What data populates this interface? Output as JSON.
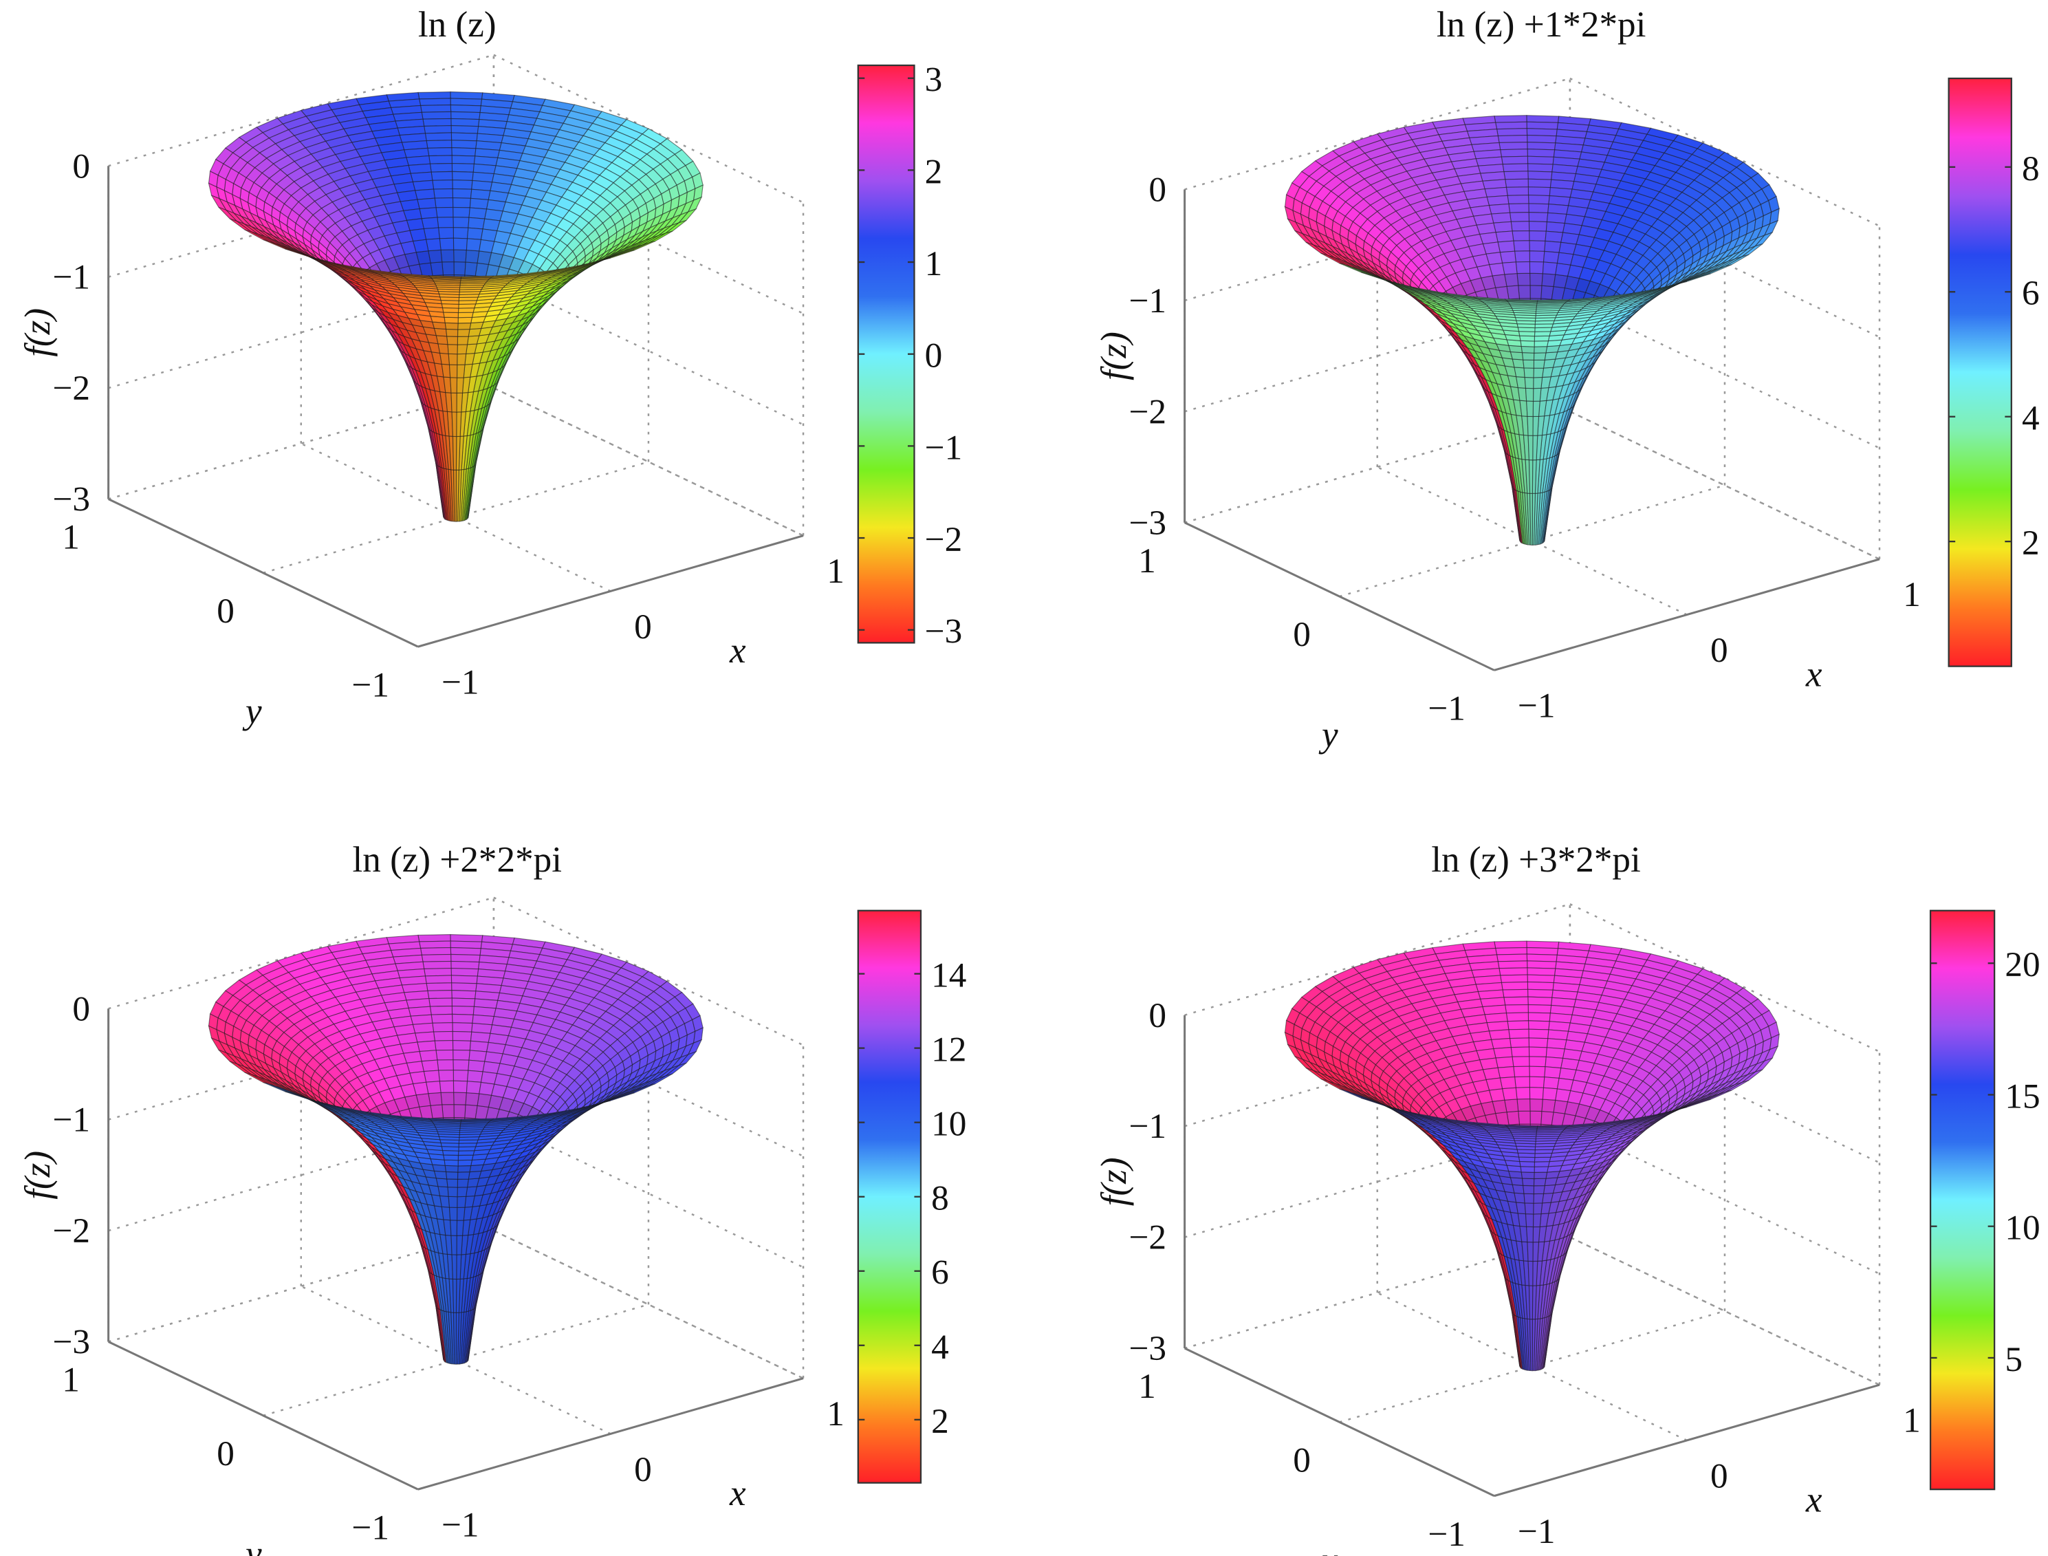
{
  "chart_data": [
    {
      "type": "surface",
      "title": "ln (z)",
      "function": "ln(z)",
      "branch_k": 0,
      "xlabel": "x",
      "ylabel": "y",
      "zlabel": "f(z)",
      "xlim": [
        -1,
        1
      ],
      "ylim": [
        -1,
        1
      ],
      "zlim": [
        -3,
        0
      ],
      "x_ticks": [
        "−1",
        "0",
        "1"
      ],
      "y_ticks": [
        "−1",
        "0",
        "1"
      ],
      "z_ticks": [
        "0",
        "−1",
        "−2",
        "−3"
      ],
      "z_tick_values": [
        0,
        -1,
        -2,
        -3
      ],
      "colorbar": {
        "range": [
          -3.14,
          3.14
        ],
        "ticks": [
          3,
          2,
          1,
          0,
          -1,
          -2,
          -3
        ],
        "tick_labels": [
          "3",
          "2",
          "1",
          "0",
          "−1",
          "−2",
          "−3"
        ]
      },
      "grid": true
    },
    {
      "type": "surface",
      "title": "ln (z) +1*2*pi",
      "function": "ln(z)+1*2*pi",
      "branch_k": 1,
      "xlabel": "x",
      "ylabel": "y",
      "zlabel": "f(z)",
      "xlim": [
        -1,
        1
      ],
      "ylim": [
        -1,
        1
      ],
      "zlim": [
        -3,
        0
      ],
      "x_ticks": [
        "−1",
        "0",
        "1"
      ],
      "y_ticks": [
        "−1",
        "0",
        "1"
      ],
      "z_ticks": [
        "0",
        "−1",
        "−2",
        "−3"
      ],
      "z_tick_values": [
        0,
        -1,
        -2,
        -3
      ],
      "colorbar": {
        "range": [
          0,
          9.42
        ],
        "ticks": [
          8,
          6,
          4,
          2
        ],
        "tick_labels": [
          "8",
          "6",
          "4",
          "2"
        ]
      },
      "grid": true
    },
    {
      "type": "surface",
      "title": "ln (z) +2*2*pi",
      "function": "ln(z)+2*2*pi",
      "branch_k": 2,
      "xlabel": "x",
      "ylabel": "y",
      "zlabel": "f(z)",
      "xlim": [
        -1,
        1
      ],
      "ylim": [
        -1,
        1
      ],
      "zlim": [
        -3,
        0
      ],
      "x_ticks": [
        "−1",
        "0",
        "1"
      ],
      "y_ticks": [
        "−1",
        "0",
        "1"
      ],
      "z_ticks": [
        "0",
        "−1",
        "−2",
        "−3"
      ],
      "z_tick_values": [
        0,
        -1,
        -2,
        -3
      ],
      "colorbar": {
        "range": [
          0.3,
          15.7
        ],
        "ticks": [
          14,
          12,
          10,
          8,
          6,
          4,
          2
        ],
        "tick_labels": [
          "14",
          "12",
          "10",
          "8",
          "6",
          "4",
          "2"
        ]
      },
      "grid": true
    },
    {
      "type": "surface",
      "title": "ln (z) +3*2*pi",
      "function": "ln(z)+3*2*pi",
      "branch_k": 3,
      "xlabel": "x",
      "ylabel": "y",
      "zlabel": "f(z)",
      "xlim": [
        -1,
        1
      ],
      "ylim": [
        -1,
        1
      ],
      "zlim": [
        -3,
        0
      ],
      "x_ticks": [
        "−1",
        "0",
        "1"
      ],
      "y_ticks": [
        "−1",
        "0",
        "1"
      ],
      "z_ticks": [
        "0",
        "−1",
        "−2",
        "−3"
      ],
      "z_tick_values": [
        0,
        -1,
        -2,
        -3
      ],
      "colorbar": {
        "range": [
          0,
          22
        ],
        "ticks": [
          20,
          15,
          10,
          5
        ],
        "tick_labels": [
          "20",
          "15",
          "10",
          "5"
        ]
      },
      "grid": true
    }
  ],
  "colormap": [
    "#ff2028",
    "#ff7a20",
    "#f4e820",
    "#78f020",
    "#80f0b0",
    "#70f0ff",
    "#3070f0",
    "#2848f0",
    "#a050f0",
    "#ff38e0",
    "#ff2040"
  ]
}
